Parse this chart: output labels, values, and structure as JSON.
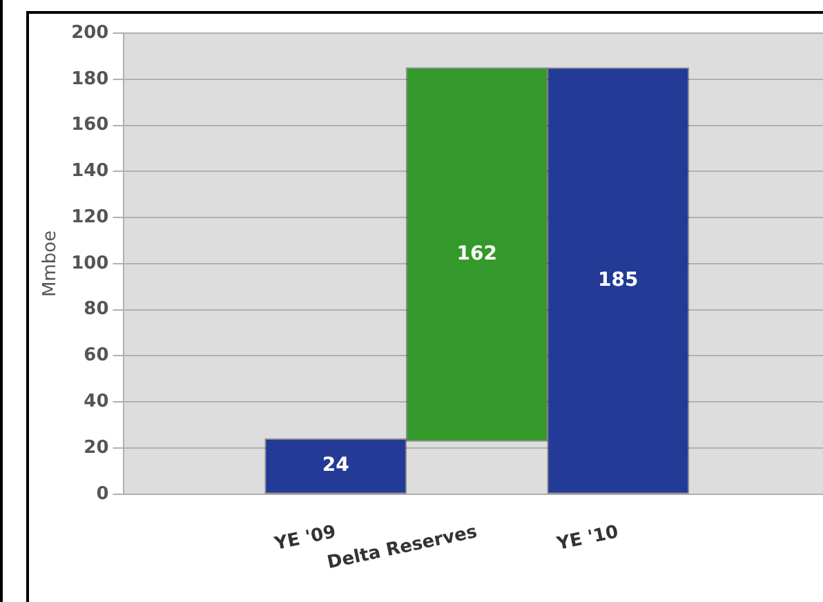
{
  "chart_data": {
    "type": "bar",
    "ylabel": "Mmboe",
    "categories": [
      null,
      "YE '09",
      "Delta Reserves",
      "YE '10",
      null
    ],
    "values": [
      null,
      24,
      162,
      185,
      null
    ],
    "base": [
      null,
      0,
      23,
      0,
      null
    ],
    "colors": [
      "#233a96",
      "#233a96",
      "#33992a",
      "#233a96",
      "#233a96"
    ],
    "ylim": [
      0,
      200
    ],
    "yticks": [
      0,
      20,
      40,
      60,
      80,
      100,
      120,
      140,
      160,
      180,
      200
    ],
    "grid": "y",
    "data_labels": true,
    "legend": false
  }
}
